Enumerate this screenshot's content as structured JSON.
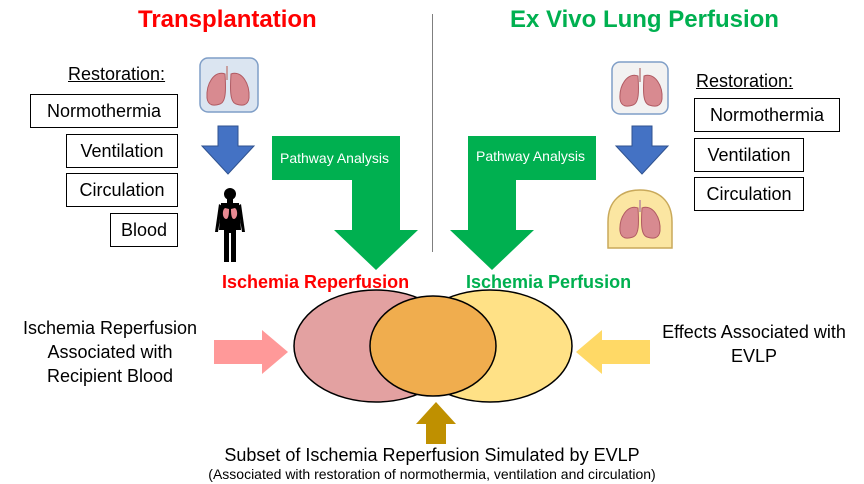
{
  "left": {
    "title": "Transplantation",
    "restoration_label": "Restoration:",
    "items": [
      "Normothermia",
      "Ventilation",
      "Circulation",
      "Blood"
    ],
    "pathway_label": "Pathway Analysis",
    "outcome": "Ischemia Reperfusion"
  },
  "right": {
    "title": "Ex Vivo Lung Perfusion",
    "restoration_label": "Restoration:",
    "items": [
      "Normothermia",
      "Ventilation",
      "Circulation"
    ],
    "pathway_label": "Pathway Analysis",
    "outcome": "Ischemia Perfusion"
  },
  "venn": {
    "left_note_lines": [
      "Ischemia Reperfusion",
      "Associated with",
      "Recipient Blood"
    ],
    "right_note_lines": [
      "Effects Associated with",
      "EVLP"
    ],
    "bottom_caption": "Subset of Ischemia Reperfusion Simulated by EVLP",
    "bottom_sub": "(Associated with restoration of normothermia, ventilation and circulation)"
  },
  "colors": {
    "left_title": "#ff0000",
    "right_title": "#00b050",
    "green_arrow": "#00b050",
    "blue_arrow": "#4472c4",
    "pink_arrow": "#ff9999",
    "yellow_arrow": "#ffd966",
    "gold_arrow": "#bf9000",
    "venn_left": "#e3a1a1",
    "venn_right": "#ffe186",
    "venn_overlap": "#f0ad4e"
  }
}
